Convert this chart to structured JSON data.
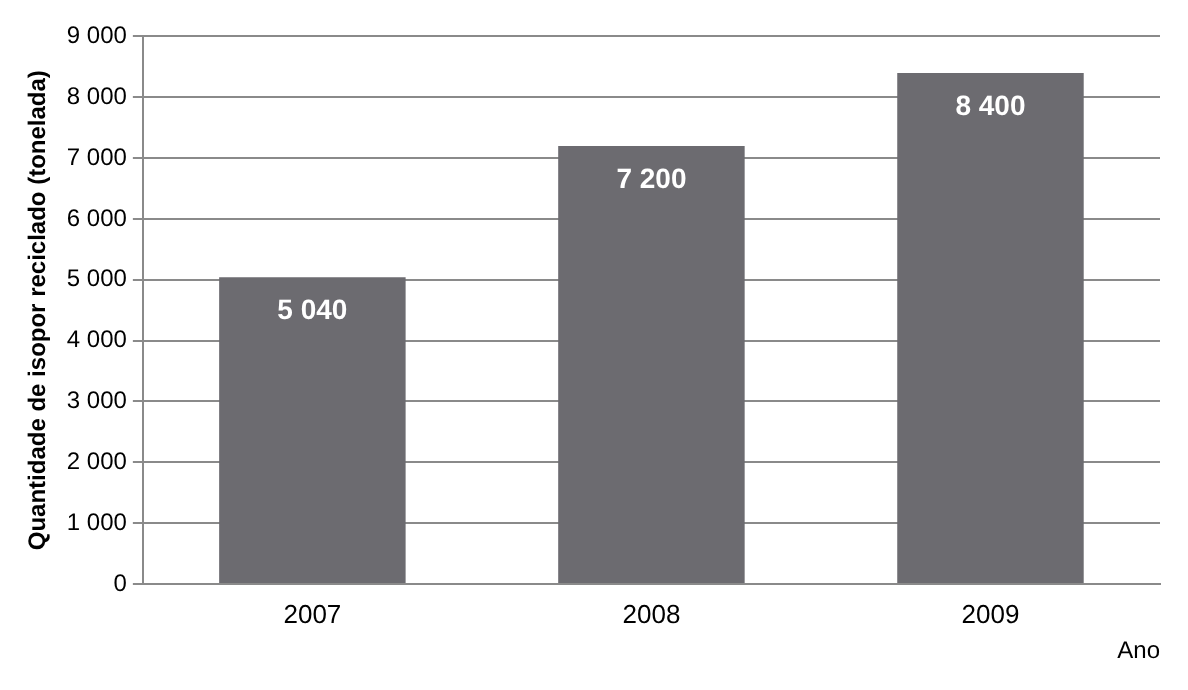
{
  "chart_data": {
    "type": "bar",
    "categories": [
      "2007",
      "2008",
      "2009"
    ],
    "values": [
      5040,
      7200,
      8400
    ],
    "value_labels": [
      "5 040",
      "7 200",
      "8 400"
    ],
    "color": "#6c6b70",
    "xlabel": "Ano",
    "ylabel": "Quantidade de isopor reciclado (tonelada)",
    "ylim": [
      0,
      9000
    ],
    "yticks": [
      {
        "value": 0,
        "label": "0"
      },
      {
        "value": 1000,
        "label": "1 000"
      },
      {
        "value": 2000,
        "label": "2 000"
      },
      {
        "value": 3000,
        "label": "3 000"
      },
      {
        "value": 4000,
        "label": "4 000"
      },
      {
        "value": 5000,
        "label": "5 000"
      },
      {
        "value": 6000,
        "label": "6 000"
      },
      {
        "value": 7000,
        "label": "7 000"
      },
      {
        "value": 8000,
        "label": "8 000"
      },
      {
        "value": 9000,
        "label": "9 000"
      }
    ],
    "grid": "y",
    "legend": false
  }
}
